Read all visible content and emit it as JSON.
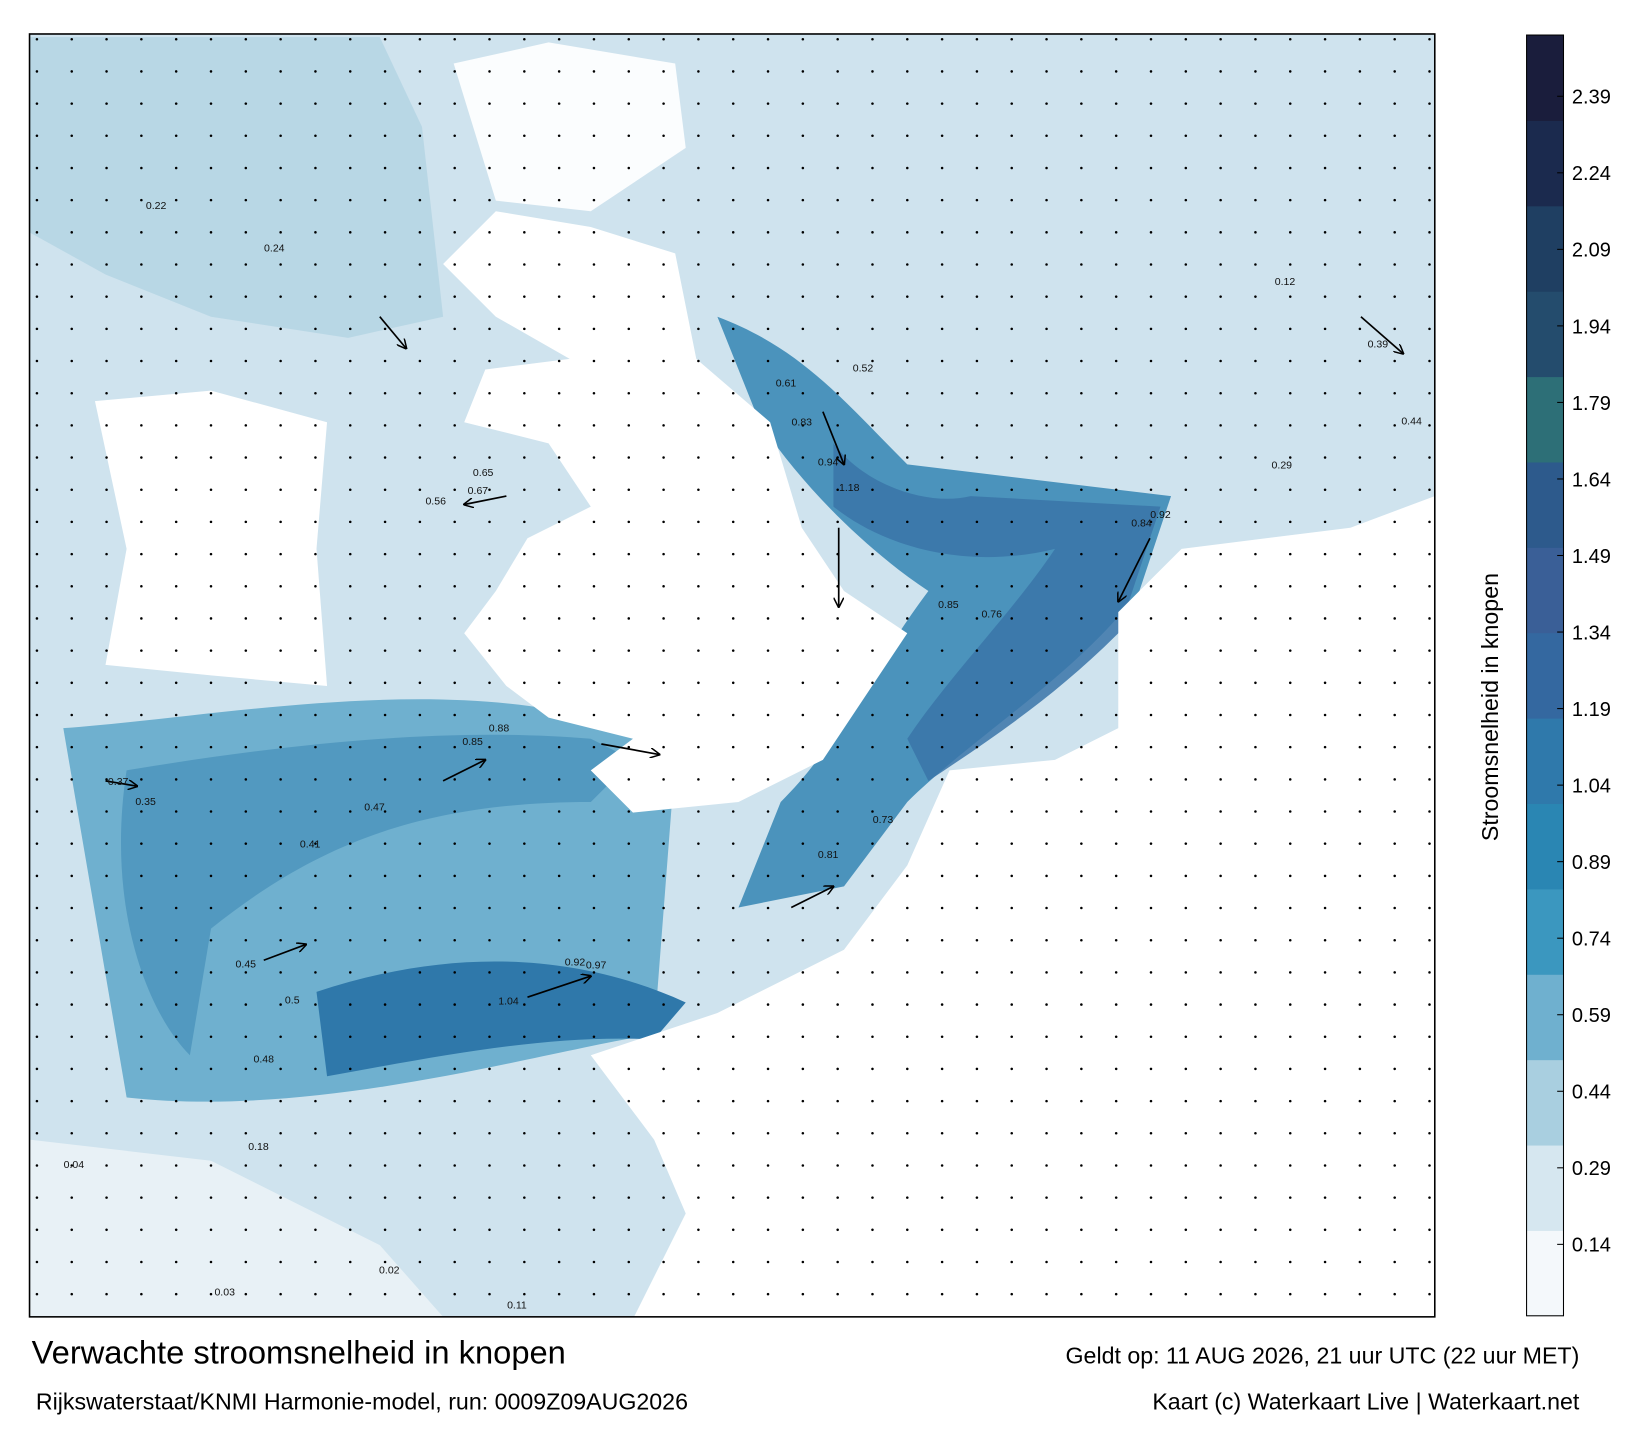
{
  "title": "Verwachte stroomsnelheid in knopen",
  "subtitle": "Rijkswaterstaat/KNMI Harmonie-model, run: 0009Z09AUG2026",
  "valid_time": "Geldt op: 11 AUG 2026, 21 uur UTC (22 uur MET)",
  "credit": "Kaart (c) Waterkaart Live | Waterkaart.net",
  "colorbar": {
    "label": "Stroomsnelheid in knopen",
    "lim": [
      0,
      2.51
    ],
    "ticks": [
      0.14,
      0.29,
      0.44,
      0.59,
      0.74,
      0.89,
      1.04,
      1.19,
      1.34,
      1.49,
      1.64,
      1.79,
      1.94,
      2.09,
      2.24,
      2.39
    ],
    "colors": [
      "#f4f8fb",
      "#d6e7f0",
      "#a9cfe0",
      "#6fb0cf",
      "#3b97bf",
      "#2a86b3",
      "#2f79ab",
      "#3468a0",
      "#3a5f97",
      "#2d5a8c",
      "#2d6f77",
      "#244c6d",
      "#1f3f62",
      "#1b2a4e",
      "#1a1d3c"
    ]
  },
  "map_labels": [
    1.18,
    0.94,
    0.83,
    0.61,
    0.52,
    0.84,
    0.92,
    0.76,
    0.85,
    0.73,
    0.81,
    0.92,
    0.97,
    1.04,
    0.88,
    0.85,
    0.67,
    0.65,
    0.56,
    0.47,
    0.41,
    0.45,
    0.5,
    0.48,
    0.37,
    0.35,
    0.24,
    0.22,
    0.18,
    0.12,
    0.04,
    0.02,
    0.03,
    0.11,
    0.39,
    0.44,
    0.29
  ]
}
